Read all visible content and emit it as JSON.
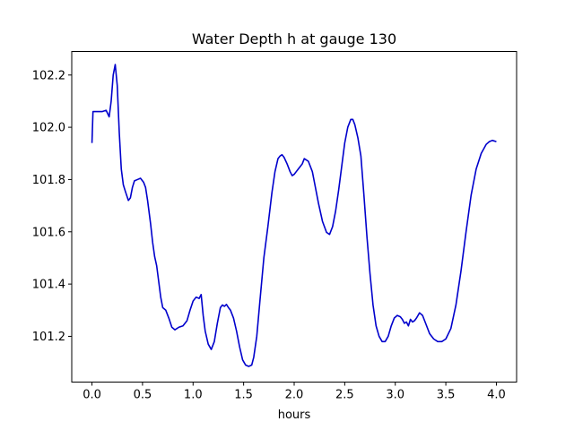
{
  "chart_data": {
    "type": "line",
    "title": "Water Depth h at gauge 130",
    "xlabel": "hours",
    "ylabel": "",
    "xlim": [
      -0.2,
      4.2
    ],
    "ylim": [
      101.025,
      102.29
    ],
    "xticks": [
      0.0,
      0.5,
      1.0,
      1.5,
      2.0,
      2.5,
      3.0,
      3.5,
      4.0
    ],
    "xtick_labels": [
      "0.0",
      "0.5",
      "1.0",
      "1.5",
      "2.0",
      "2.5",
      "3.0",
      "3.5",
      "4.0"
    ],
    "yticks": [
      101.2,
      101.4,
      101.6,
      101.8,
      102.0,
      102.2
    ],
    "ytick_labels": [
      "101.2",
      "101.4",
      "101.6",
      "101.8",
      "102.0",
      "102.2"
    ],
    "grid": false,
    "legend": "none",
    "series": [
      {
        "color": "#0000cc",
        "x": [
          0.0,
          0.01,
          0.05,
          0.1,
          0.14,
          0.17,
          0.19,
          0.21,
          0.23,
          0.25,
          0.27,
          0.29,
          0.31,
          0.33,
          0.36,
          0.38,
          0.4,
          0.42,
          0.45,
          0.48,
          0.51,
          0.53,
          0.55,
          0.58,
          0.6,
          0.62,
          0.64,
          0.66,
          0.68,
          0.7,
          0.73,
          0.76,
          0.79,
          0.82,
          0.86,
          0.9,
          0.94,
          0.97,
          1.0,
          1.03,
          1.06,
          1.08,
          1.1,
          1.12,
          1.15,
          1.18,
          1.21,
          1.24,
          1.27,
          1.29,
          1.31,
          1.33,
          1.35,
          1.37,
          1.4,
          1.43,
          1.46,
          1.49,
          1.52,
          1.55,
          1.58,
          1.6,
          1.63,
          1.66,
          1.7,
          1.74,
          1.78,
          1.81,
          1.84,
          1.86,
          1.88,
          1.9,
          1.93,
          1.96,
          1.98,
          2.0,
          2.02,
          2.04,
          2.06,
          2.08,
          2.1,
          2.12,
          2.14,
          2.16,
          2.18,
          2.2,
          2.24,
          2.28,
          2.32,
          2.35,
          2.38,
          2.41,
          2.44,
          2.47,
          2.5,
          2.53,
          2.56,
          2.58,
          2.6,
          2.63,
          2.66,
          2.69,
          2.72,
          2.75,
          2.78,
          2.81,
          2.84,
          2.87,
          2.9,
          2.93,
          2.96,
          2.99,
          3.02,
          3.05,
          3.07,
          3.09,
          3.11,
          3.13,
          3.15,
          3.17,
          3.19,
          3.21,
          3.24,
          3.27,
          3.3,
          3.34,
          3.38,
          3.42,
          3.46,
          3.5,
          3.55,
          3.6,
          3.65,
          3.7,
          3.75,
          3.8,
          3.85,
          3.9,
          3.93,
          3.96,
          4.0
        ],
        "y": [
          101.94,
          102.06,
          102.06,
          102.06,
          102.065,
          102.04,
          102.1,
          102.2,
          102.24,
          102.16,
          101.98,
          101.84,
          101.78,
          101.755,
          101.72,
          101.73,
          101.77,
          101.795,
          101.8,
          101.805,
          101.79,
          101.77,
          101.72,
          101.63,
          101.56,
          101.505,
          101.47,
          101.41,
          101.35,
          101.31,
          101.3,
          101.27,
          101.235,
          101.225,
          101.235,
          101.24,
          101.26,
          101.3,
          101.335,
          101.35,
          101.345,
          101.36,
          101.28,
          101.22,
          101.17,
          101.15,
          101.18,
          101.25,
          101.31,
          101.32,
          101.315,
          101.322,
          101.31,
          101.3,
          101.27,
          101.22,
          101.16,
          101.11,
          101.09,
          101.085,
          101.09,
          101.12,
          101.2,
          101.33,
          101.5,
          101.62,
          101.75,
          101.83,
          101.88,
          101.89,
          101.895,
          101.885,
          101.86,
          101.83,
          101.815,
          101.82,
          101.83,
          101.84,
          101.85,
          101.86,
          101.88,
          101.875,
          101.87,
          101.85,
          101.83,
          101.79,
          101.71,
          101.64,
          101.598,
          101.59,
          101.62,
          101.68,
          101.76,
          101.85,
          101.94,
          102.0,
          102.03,
          102.03,
          102.01,
          101.96,
          101.89,
          101.74,
          101.58,
          101.44,
          101.32,
          101.24,
          101.2,
          101.18,
          101.18,
          101.2,
          101.24,
          101.27,
          101.28,
          101.275,
          101.265,
          101.25,
          101.255,
          101.24,
          101.265,
          101.255,
          101.26,
          101.27,
          101.29,
          101.28,
          101.25,
          101.21,
          101.19,
          101.18,
          101.18,
          101.19,
          101.23,
          101.32,
          101.45,
          101.6,
          101.74,
          101.84,
          101.9,
          101.935,
          101.945,
          101.95,
          101.945
        ]
      }
    ]
  }
}
